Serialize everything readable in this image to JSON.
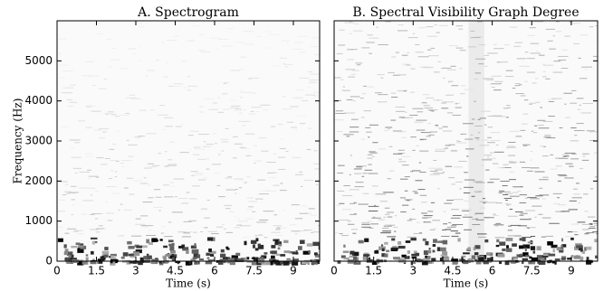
{
  "chart_data": [
    {
      "type": "spectrogram",
      "title": "A. Spectrogram",
      "xlabel": "Time (s)",
      "ylabel": "Frequency (Hz)",
      "xlim": [
        0,
        10
      ],
      "xticks": [
        0,
        1.5,
        3,
        4.5,
        6,
        7.5,
        9
      ],
      "ylim": [
        0,
        6000
      ],
      "yticks": [
        0,
        1000,
        2000,
        3000,
        4000,
        5000
      ]
    },
    {
      "type": "spectrogram",
      "title": "B. Spectral Visibility Graph Degree",
      "xlabel": "Time (s)",
      "xlim": [
        0,
        10
      ],
      "xticks": [
        0,
        1.5,
        3,
        4.5,
        6,
        7.5,
        9
      ],
      "ylim": [
        0,
        6000
      ],
      "yticks": [
        0,
        1000,
        2000,
        3000,
        4000,
        5000
      ]
    }
  ]
}
